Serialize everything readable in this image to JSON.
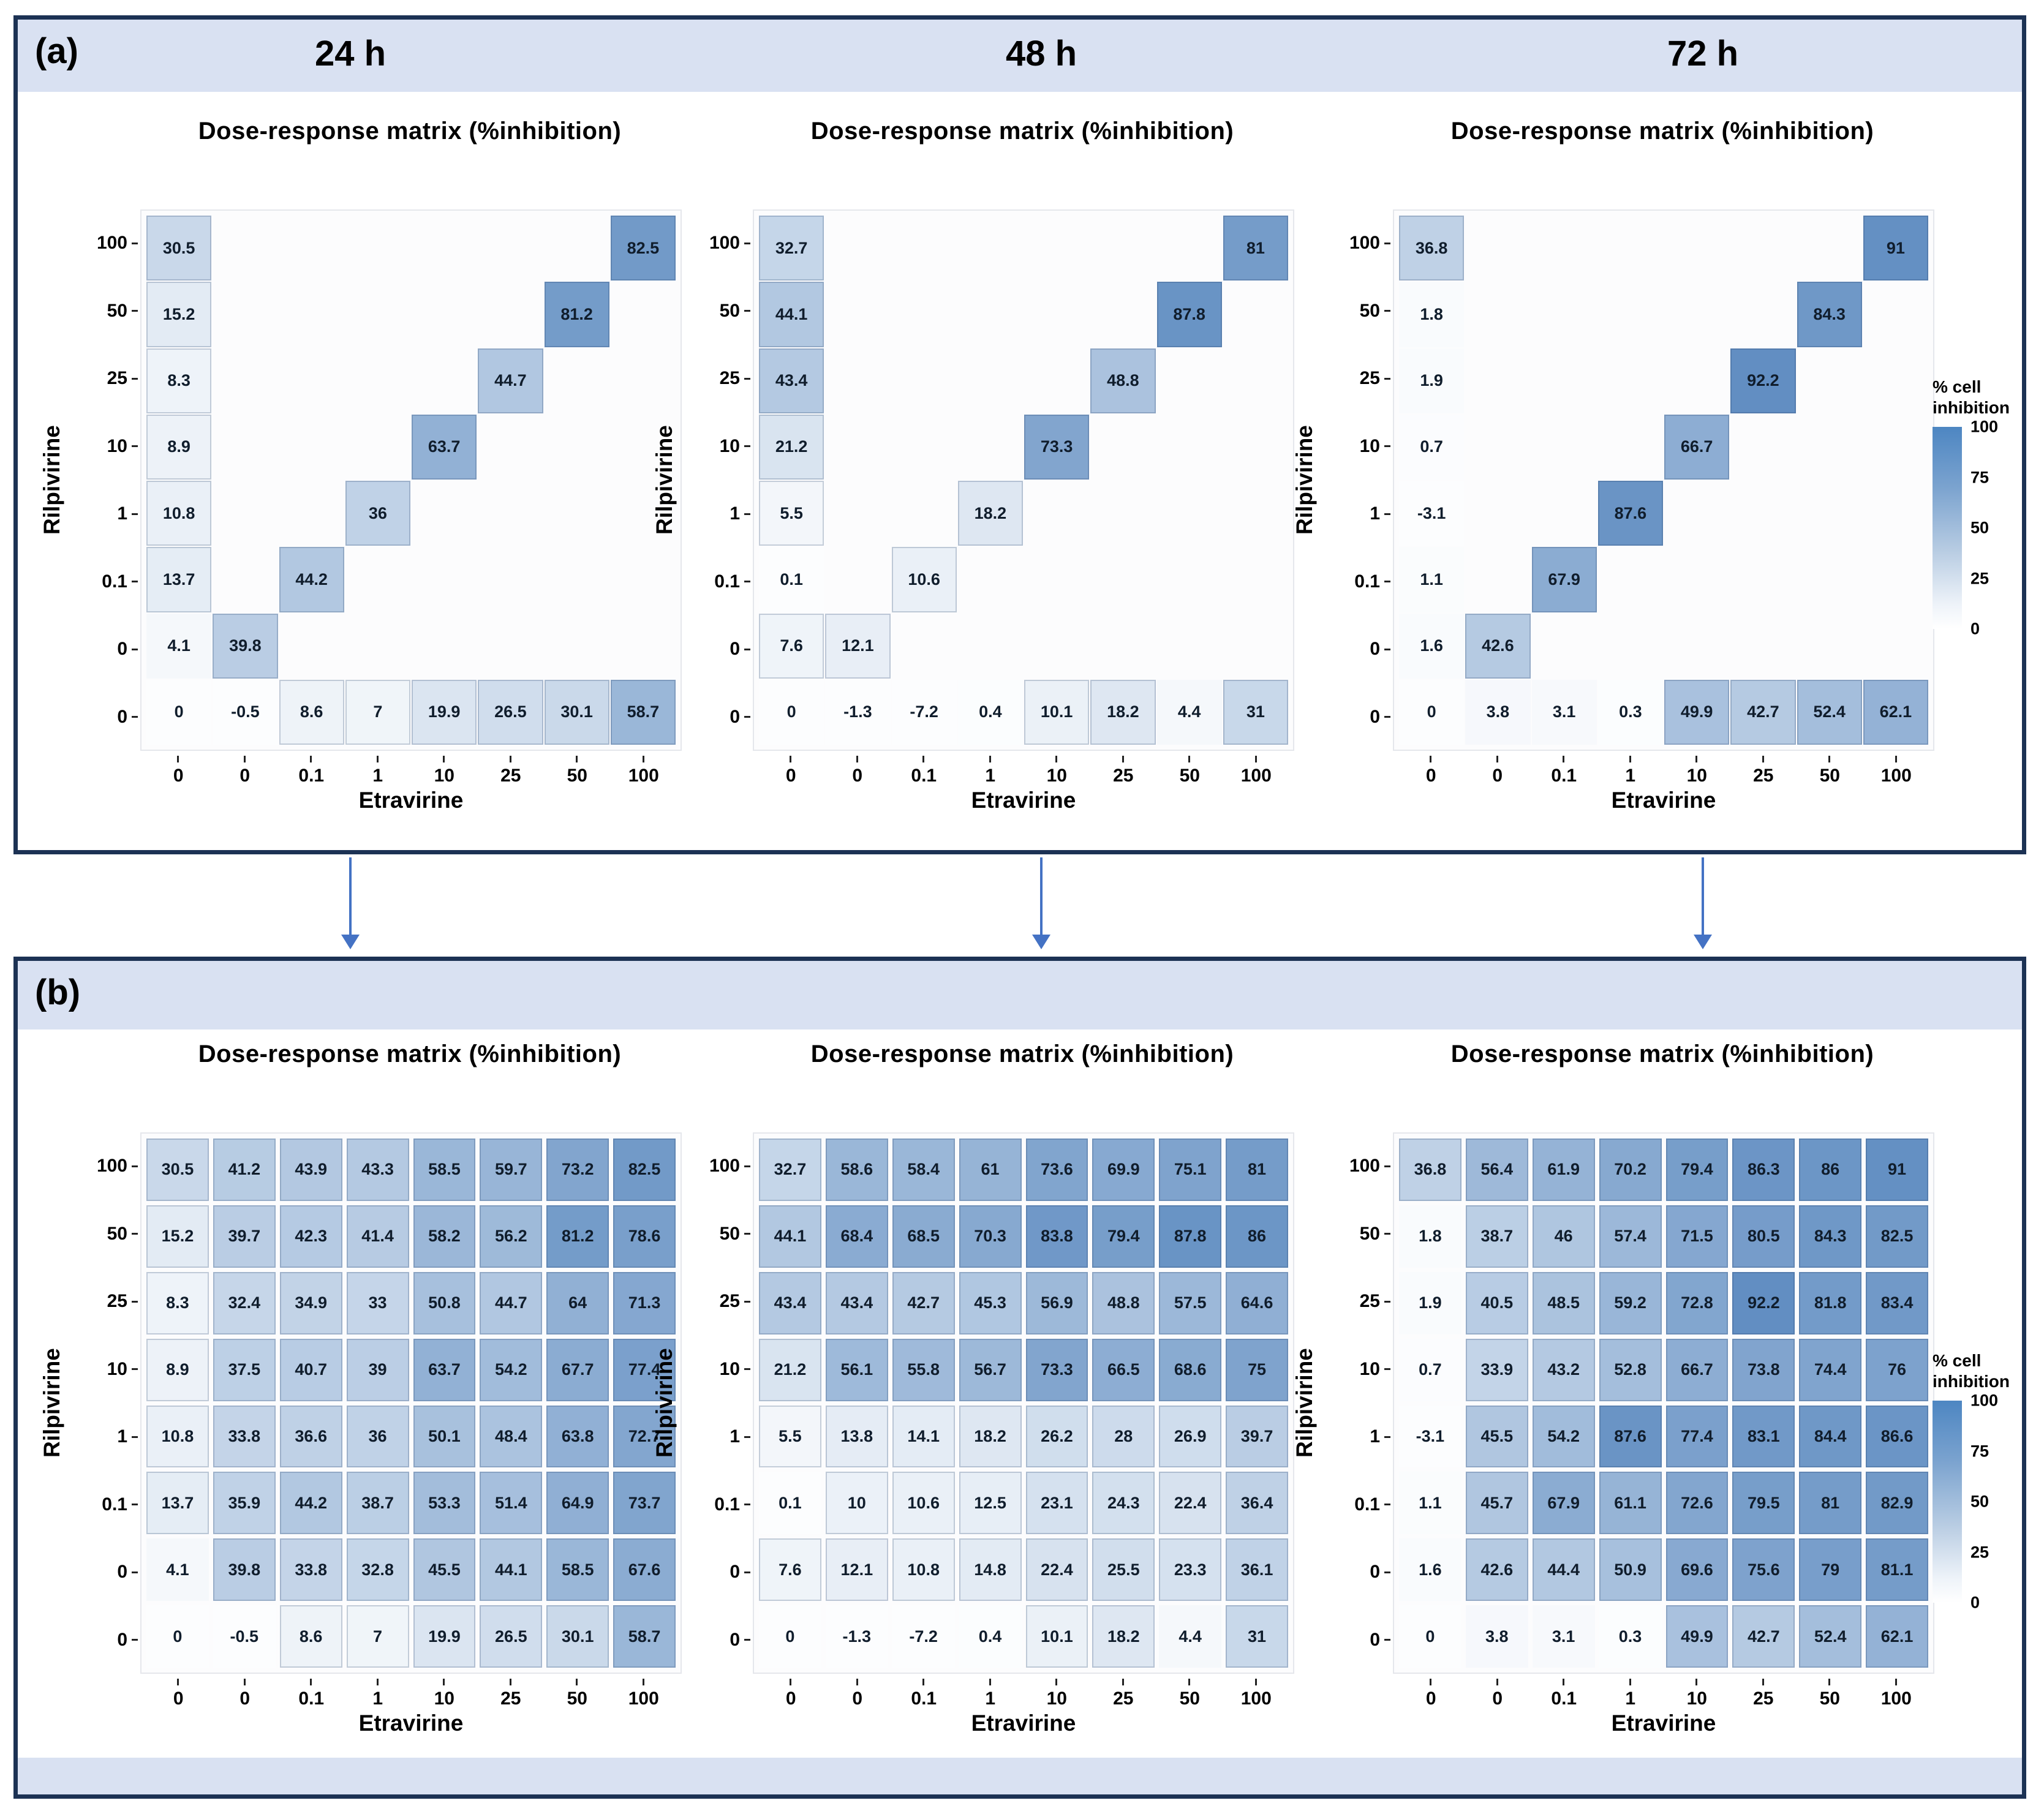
{
  "colors": {
    "panel_border": "#1c3254",
    "header_strip": "#d9e1f2",
    "arrow": "#4472c4",
    "heat_max": "#5585bd",
    "heat_min": "#fcfdfe",
    "cell_text": "#101d2c"
  },
  "panel_a": {
    "label": "(a)",
    "time_headers": [
      "24 h",
      "48 h",
      "72 h"
    ]
  },
  "panel_b": {
    "label": "(b)"
  },
  "legend": {
    "title_line1": "% cell",
    "title_line2": "inhibition",
    "ticks": [
      "100",
      "75",
      "50",
      "25",
      "0"
    ]
  },
  "chart_data": [
    {
      "type": "heatmap",
      "panel": "a",
      "time": "24 h",
      "title": "Dose-response matrix (%inhibition)",
      "xlabel": "Etravirine",
      "ylabel": "Rilpivirine",
      "x_categories": [
        "0",
        "0",
        "0.1",
        "1",
        "10",
        "25",
        "50",
        "100"
      ],
      "y_categories": [
        "100",
        "50",
        "25",
        "10",
        "1",
        "0.1",
        "0",
        "0"
      ],
      "colorscale": {
        "min": 0,
        "max": 100
      },
      "values": [
        [
          30.5,
          null,
          null,
          null,
          null,
          null,
          null,
          82.5
        ],
        [
          15.2,
          null,
          null,
          null,
          null,
          null,
          81.2,
          null
        ],
        [
          8.3,
          null,
          null,
          null,
          null,
          44.7,
          null,
          null
        ],
        [
          8.9,
          null,
          null,
          null,
          63.7,
          null,
          null,
          null
        ],
        [
          10.8,
          null,
          null,
          36,
          null,
          null,
          null,
          null
        ],
        [
          13.7,
          null,
          44.2,
          null,
          null,
          null,
          null,
          null
        ],
        [
          4.1,
          39.8,
          null,
          null,
          null,
          null,
          null,
          null
        ],
        [
          0,
          -0.5,
          8.6,
          7,
          19.9,
          26.5,
          30.1,
          58.7
        ]
      ]
    },
    {
      "type": "heatmap",
      "panel": "a",
      "time": "48 h",
      "title": "Dose-response matrix (%inhibition)",
      "xlabel": "Etravirine",
      "ylabel": "Rilpivirine",
      "x_categories": [
        "0",
        "0",
        "0.1",
        "1",
        "10",
        "25",
        "50",
        "100"
      ],
      "y_categories": [
        "100",
        "50",
        "25",
        "10",
        "1",
        "0.1",
        "0",
        "0"
      ],
      "colorscale": {
        "min": 0,
        "max": 100
      },
      "values": [
        [
          32.7,
          null,
          null,
          null,
          null,
          null,
          null,
          81
        ],
        [
          44.1,
          null,
          null,
          null,
          null,
          null,
          87.8,
          null
        ],
        [
          43.4,
          null,
          null,
          null,
          null,
          48.8,
          null,
          null
        ],
        [
          21.2,
          null,
          null,
          null,
          73.3,
          null,
          null,
          null
        ],
        [
          5.5,
          null,
          null,
          18.2,
          null,
          null,
          null,
          null
        ],
        [
          0.1,
          null,
          10.6,
          null,
          null,
          null,
          null,
          null
        ],
        [
          7.6,
          12.1,
          null,
          null,
          null,
          null,
          null,
          null
        ],
        [
          0,
          -1.3,
          -7.2,
          0.4,
          10.1,
          18.2,
          4.4,
          31
        ]
      ]
    },
    {
      "type": "heatmap",
      "panel": "a",
      "time": "72 h",
      "title": "Dose-response matrix (%inhibition)",
      "xlabel": "Etravirine",
      "ylabel": "Rilpivirine",
      "x_categories": [
        "0",
        "0",
        "0.1",
        "1",
        "10",
        "25",
        "50",
        "100"
      ],
      "y_categories": [
        "100",
        "50",
        "25",
        "10",
        "1",
        "0.1",
        "0",
        "0"
      ],
      "colorscale": {
        "min": 0,
        "max": 100
      },
      "values": [
        [
          36.8,
          null,
          null,
          null,
          null,
          null,
          null,
          91
        ],
        [
          1.8,
          null,
          null,
          null,
          null,
          null,
          84.3,
          null
        ],
        [
          1.9,
          null,
          null,
          null,
          null,
          92.2,
          null,
          null
        ],
        [
          0.7,
          null,
          null,
          null,
          66.7,
          null,
          null,
          null
        ],
        [
          -3.1,
          null,
          null,
          87.6,
          null,
          null,
          null,
          null
        ],
        [
          1.1,
          null,
          67.9,
          null,
          null,
          null,
          null,
          null
        ],
        [
          1.6,
          42.6,
          null,
          null,
          null,
          null,
          null,
          null
        ],
        [
          0,
          3.8,
          3.1,
          0.3,
          49.9,
          42.7,
          52.4,
          62.1
        ]
      ]
    },
    {
      "type": "heatmap",
      "panel": "b",
      "time": "24 h",
      "title": "Dose-response matrix (%inhibition)",
      "xlabel": "Etravirine",
      "ylabel": "Rilpivirine",
      "x_categories": [
        "0",
        "0",
        "0.1",
        "1",
        "10",
        "25",
        "50",
        "100"
      ],
      "y_categories": [
        "100",
        "50",
        "25",
        "10",
        "1",
        "0.1",
        "0",
        "0"
      ],
      "colorscale": {
        "min": 0,
        "max": 100
      },
      "values": [
        [
          30.5,
          41.2,
          43.9,
          43.3,
          58.5,
          59.7,
          73.2,
          82.5
        ],
        [
          15.2,
          39.7,
          42.3,
          41.4,
          58.2,
          56.2,
          81.2,
          78.6
        ],
        [
          8.3,
          32.4,
          34.9,
          33,
          50.8,
          44.7,
          64,
          71.3
        ],
        [
          8.9,
          37.5,
          40.7,
          39,
          63.7,
          54.2,
          67.7,
          77.4
        ],
        [
          10.8,
          33.8,
          36.6,
          36,
          50.1,
          48.4,
          63.8,
          72.7
        ],
        [
          13.7,
          35.9,
          44.2,
          38.7,
          53.3,
          51.4,
          64.9,
          73.7
        ],
        [
          4.1,
          39.8,
          33.8,
          32.8,
          45.5,
          44.1,
          58.5,
          67.6
        ],
        [
          0,
          -0.5,
          8.6,
          7,
          19.9,
          26.5,
          30.1,
          58.7
        ]
      ]
    },
    {
      "type": "heatmap",
      "panel": "b",
      "time": "48 h",
      "title": "Dose-response matrix (%inhibition)",
      "xlabel": "Etravirine",
      "ylabel": "Rilpivirine",
      "x_categories": [
        "0",
        "0",
        "0.1",
        "1",
        "10",
        "25",
        "50",
        "100"
      ],
      "y_categories": [
        "100",
        "50",
        "25",
        "10",
        "1",
        "0.1",
        "0",
        "0"
      ],
      "colorscale": {
        "min": 0,
        "max": 100
      },
      "values": [
        [
          32.7,
          58.6,
          58.4,
          61,
          73.6,
          69.9,
          75.1,
          81
        ],
        [
          44.1,
          68.4,
          68.5,
          70.3,
          83.8,
          79.4,
          87.8,
          86
        ],
        [
          43.4,
          43.4,
          42.7,
          45.3,
          56.9,
          48.8,
          57.5,
          64.6
        ],
        [
          21.2,
          56.1,
          55.8,
          56.7,
          73.3,
          66.5,
          68.6,
          75
        ],
        [
          5.5,
          13.8,
          14.1,
          18.2,
          26.2,
          28,
          26.9,
          39.7
        ],
        [
          0.1,
          10,
          10.6,
          12.5,
          23.1,
          24.3,
          22.4,
          36.4
        ],
        [
          7.6,
          12.1,
          10.8,
          14.8,
          22.4,
          25.5,
          23.3,
          36.1
        ],
        [
          0,
          -1.3,
          -7.2,
          0.4,
          10.1,
          18.2,
          4.4,
          31
        ]
      ]
    },
    {
      "type": "heatmap",
      "panel": "b",
      "time": "72 h",
      "title": "Dose-response matrix (%inhibition)",
      "xlabel": "Etravirine",
      "ylabel": "Rilpivirine",
      "x_categories": [
        "0",
        "0",
        "0.1",
        "1",
        "10",
        "25",
        "50",
        "100"
      ],
      "y_categories": [
        "100",
        "50",
        "25",
        "10",
        "1",
        "0.1",
        "0",
        "0"
      ],
      "colorscale": {
        "min": 0,
        "max": 100
      },
      "values": [
        [
          36.8,
          56.4,
          61.9,
          70.2,
          79.4,
          86.3,
          86,
          91
        ],
        [
          1.8,
          38.7,
          46,
          57.4,
          71.5,
          80.5,
          84.3,
          82.5
        ],
        [
          1.9,
          40.5,
          48.5,
          59.2,
          72.8,
          92.2,
          81.8,
          83.4
        ],
        [
          0.7,
          33.9,
          43.2,
          52.8,
          66.7,
          73.8,
          74.4,
          76
        ],
        [
          -3.1,
          45.5,
          54.2,
          87.6,
          77.4,
          83.1,
          84.4,
          86.6
        ],
        [
          1.1,
          45.7,
          67.9,
          61.1,
          72.6,
          79.5,
          81,
          82.9
        ],
        [
          1.6,
          42.6,
          44.4,
          50.9,
          69.6,
          75.6,
          79,
          81.1
        ],
        [
          0,
          3.8,
          3.1,
          0.3,
          49.9,
          42.7,
          52.4,
          62.1
        ]
      ]
    }
  ]
}
